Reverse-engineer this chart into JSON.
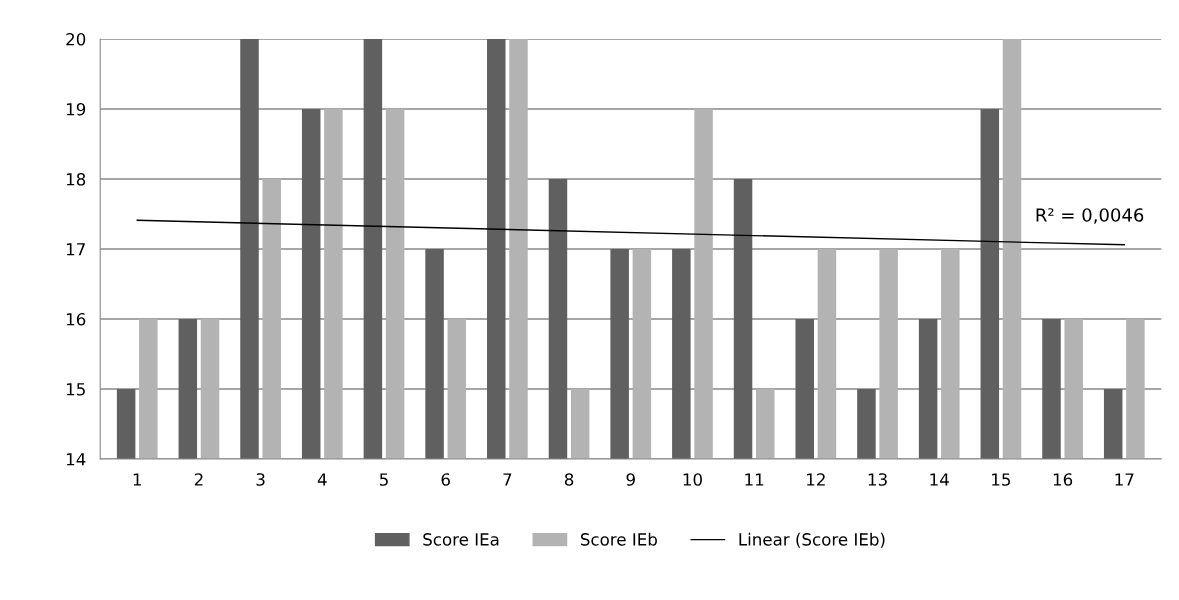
{
  "chart_data": {
    "type": "bar",
    "categories": [
      "1",
      "2",
      "3",
      "4",
      "5",
      "6",
      "7",
      "8",
      "9",
      "10",
      "11",
      "12",
      "13",
      "14",
      "15",
      "16",
      "17"
    ],
    "series": [
      {
        "name": "Score IEa",
        "color": "#606060",
        "values": [
          15,
          16,
          20,
          19,
          20,
          17,
          20,
          18,
          17,
          17,
          18,
          16,
          15,
          16,
          19,
          16,
          15
        ]
      },
      {
        "name": "Score IEb",
        "color": "#b3b3b3",
        "values": [
          16,
          16,
          18,
          19,
          19,
          16,
          20,
          15,
          17,
          19,
          15,
          17,
          17,
          17,
          20,
          16,
          16
        ]
      },
      {
        "name": "Linear (Score IEb)",
        "type": "line",
        "color": "#000000",
        "x": [
          "1",
          "17"
        ],
        "values": [
          17.41,
          17.06
        ]
      }
    ],
    "ylim": [
      14,
      20
    ],
    "yticks": [
      14,
      15,
      16,
      17,
      18,
      19,
      20
    ],
    "grid": "y",
    "legend": "bottom",
    "annotations": [
      {
        "text": "R² = 0,0046",
        "x": "16",
        "y": 17.06
      }
    ]
  }
}
